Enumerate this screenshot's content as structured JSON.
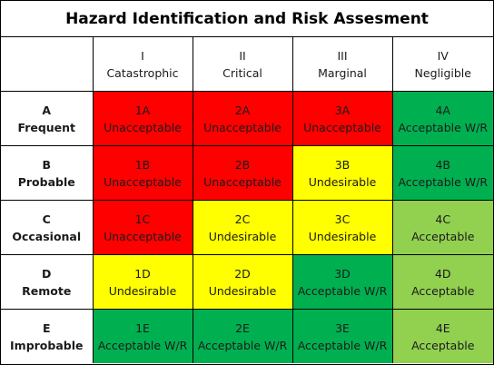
{
  "title": "Hazard Identification and Risk Assesment",
  "colors": {
    "unacceptable": "#ff0000",
    "undesirable": "#ffff00",
    "acceptable_wr": "#00b050",
    "acceptable": "#92d050"
  },
  "columns": [
    {
      "numeral": "I",
      "label": "Catastrophic"
    },
    {
      "numeral": "II",
      "label": "Critical"
    },
    {
      "numeral": "III",
      "label": "Marginal"
    },
    {
      "numeral": "IV",
      "label": "Negligible"
    }
  ],
  "rows": [
    {
      "letter": "A",
      "label": "Frequent",
      "cells": [
        {
          "code": "1A",
          "level": "Unacceptable",
          "color": "red"
        },
        {
          "code": "2A",
          "level": "Unacceptable",
          "color": "red"
        },
        {
          "code": "3A",
          "level": "Unacceptable",
          "color": "red"
        },
        {
          "code": "4A",
          "level": "Acceptable W/R",
          "color": "dkgreen"
        }
      ]
    },
    {
      "letter": "B",
      "label": "Probable",
      "cells": [
        {
          "code": "1B",
          "level": "Unacceptable",
          "color": "red"
        },
        {
          "code": "2B",
          "level": "Unacceptable",
          "color": "red"
        },
        {
          "code": "3B",
          "level": "Undesirable",
          "color": "yellow"
        },
        {
          "code": "4B",
          "level": "Acceptable W/R",
          "color": "dkgreen"
        }
      ]
    },
    {
      "letter": "C",
      "label": "Occasional",
      "cells": [
        {
          "code": "1C",
          "level": "Unacceptable",
          "color": "red"
        },
        {
          "code": "2C",
          "level": "Undesirable",
          "color": "yellow"
        },
        {
          "code": "3C",
          "level": "Undesirable",
          "color": "yellow"
        },
        {
          "code": "4C",
          "level": "Acceptable",
          "color": "ltgreen"
        }
      ]
    },
    {
      "letter": "D",
      "label": "Remote",
      "cells": [
        {
          "code": "1D",
          "level": "Undesirable",
          "color": "yellow"
        },
        {
          "code": "2D",
          "level": "Undesirable",
          "color": "yellow"
        },
        {
          "code": "3D",
          "level": "Acceptable W/R",
          "color": "dkgreen"
        },
        {
          "code": "4D",
          "level": "Acceptable",
          "color": "ltgreen"
        }
      ]
    },
    {
      "letter": "E",
      "label": "Improbable",
      "cells": [
        {
          "code": "1E",
          "level": "Acceptable W/R",
          "color": "dkgreen"
        },
        {
          "code": "2E",
          "level": "Acceptable W/R",
          "color": "dkgreen"
        },
        {
          "code": "3E",
          "level": "Acceptable W/R",
          "color": "dkgreen"
        },
        {
          "code": "4E",
          "level": "Acceptable",
          "color": "ltgreen"
        }
      ]
    }
  ]
}
